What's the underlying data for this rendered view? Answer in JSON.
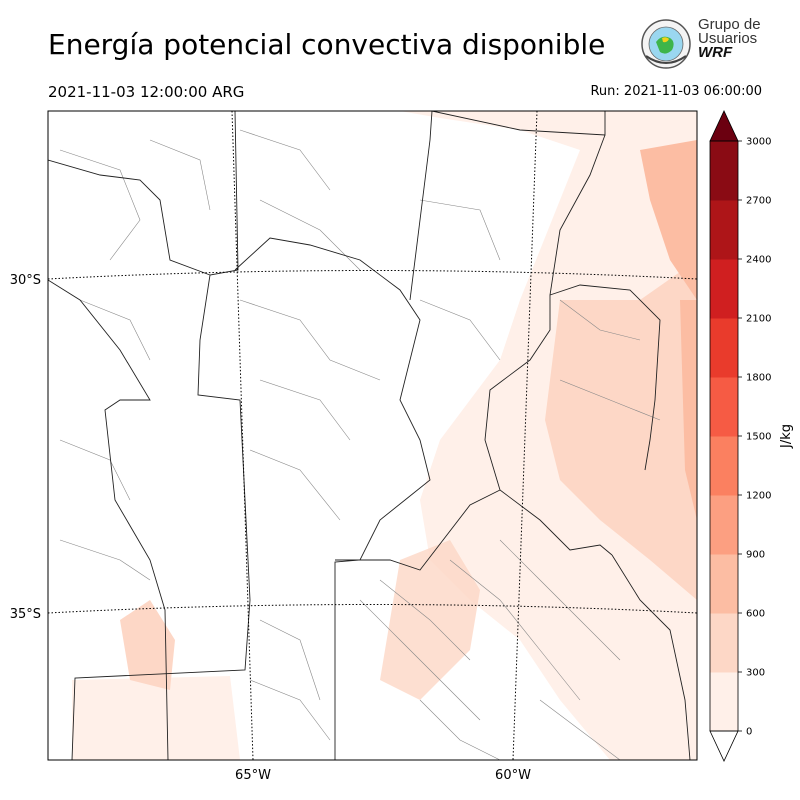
{
  "title": "Energía potencial convectiva disponible",
  "valid_time": "2021-11-03 12:00:00 ARG",
  "run_time": "Run: 2021-11-03 06:00:00",
  "logo": {
    "line1": "Grupo de",
    "line2": "Usuarios",
    "line3": "WRF"
  },
  "map": {
    "lat_labels": [
      "30°S",
      "35°S"
    ],
    "lon_labels": [
      "65°W",
      "60°W"
    ]
  },
  "colorbar": {
    "label": "J/kg",
    "ticks": [
      "0",
      "300",
      "600",
      "900",
      "1200",
      "1500",
      "1800",
      "2100",
      "2400",
      "2700",
      "3000"
    ],
    "colors": [
      "#fff0e9",
      "#fdd7c6",
      "#fcbda3",
      "#fc9f81",
      "#fb8060",
      "#f65b44",
      "#e93b2c",
      "#d01f20",
      "#ae1518",
      "#8a0b14",
      "#6b0010"
    ]
  }
}
